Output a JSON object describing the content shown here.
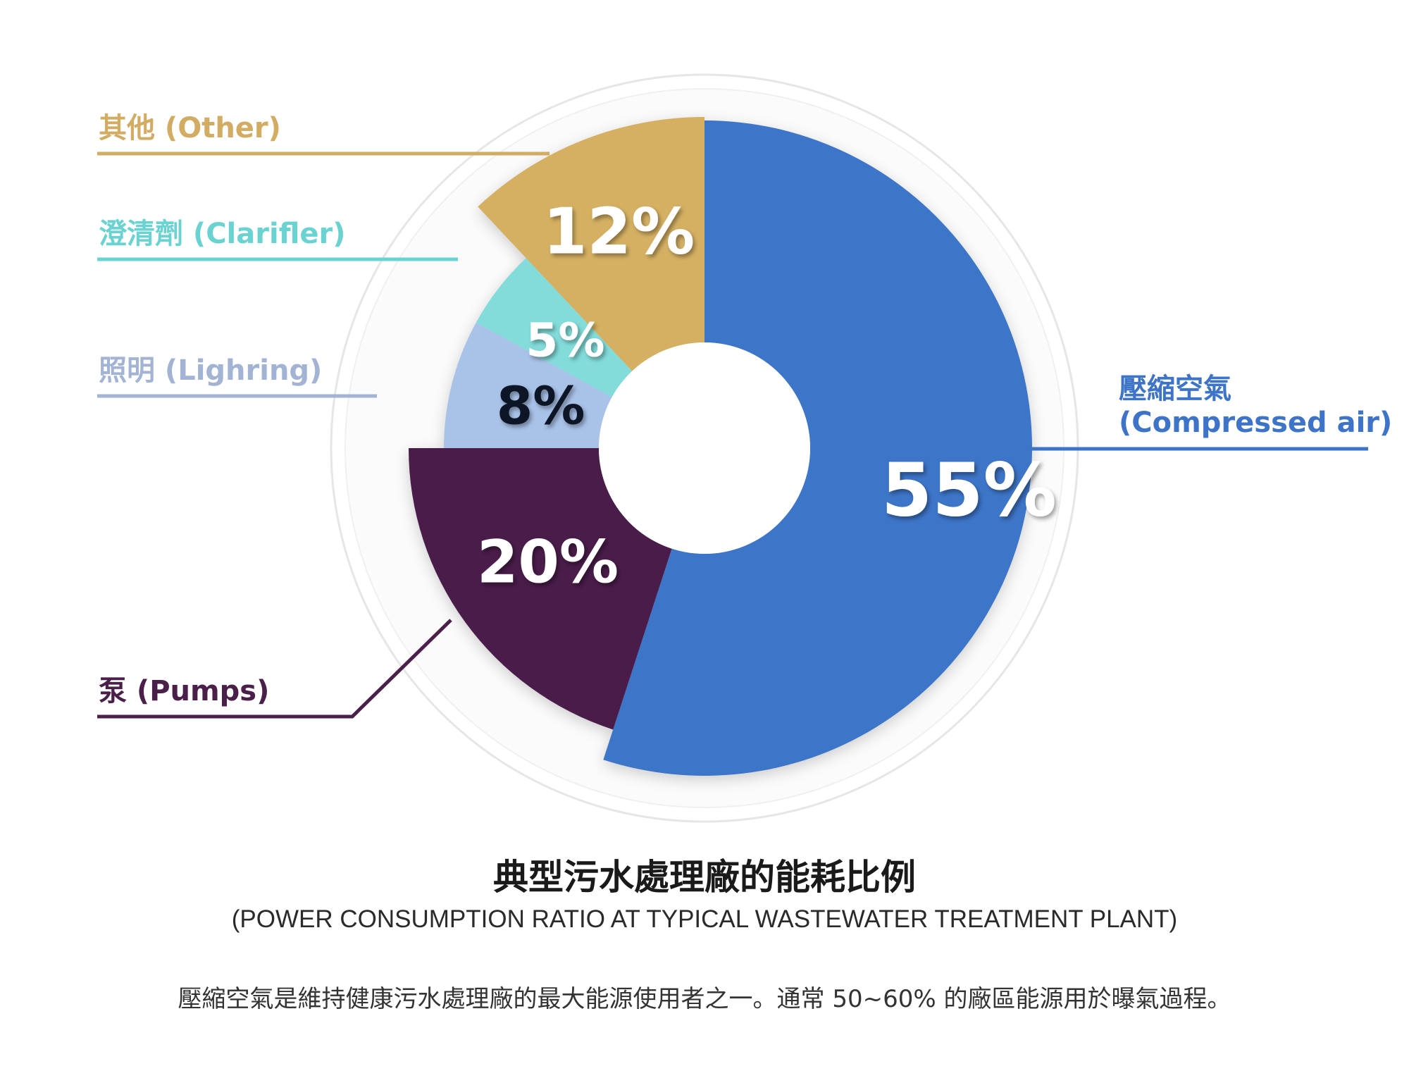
{
  "chart_data": {
    "type": "pie",
    "title": "典型污水處理廠的能耗比例",
    "subtitle": "(POWER CONSUMPTION RATIO AT TYPICAL WASTEWATER TREATMENT PLANT)",
    "slices": [
      {
        "label_zh": "壓縮空氣",
        "label_en": "(Compressed air)",
        "value": 55,
        "display": "55%",
        "color": "#3e74c8",
        "text_color": "#ffffff"
      },
      {
        "label_zh": "泵",
        "label_en": "(Pumps)",
        "value": 20,
        "display": "20%",
        "color": "#4a1f4a",
        "text_color": "#ffffff"
      },
      {
        "label_zh": "照明",
        "label_en": "(Lighring)",
        "value": 8,
        "display": "8%",
        "color": "#a9c2e8",
        "text_color": "#111827"
      },
      {
        "label_zh": "澄清劑",
        "label_en": "(Clarifler)",
        "value": 5,
        "display": "5%",
        "color": "#83dcda",
        "text_color": "#ffffff"
      },
      {
        "label_zh": "其他",
        "label_en": "(Other)",
        "value": 12,
        "display": "12%",
        "color": "#d5b063",
        "text_color": "#ffffff"
      }
    ],
    "label_colors": {
      "compressed_air": "#3e74c8",
      "pumps": "#4a1f4a",
      "lighting": "#a2b3d3",
      "clarifier": "#6ad3d1",
      "other": "#d1ac62"
    }
  },
  "labels": {
    "compressed_air_zh": "壓縮空氣",
    "compressed_air_en": "(Compressed air)",
    "pumps": "泵 (Pumps)",
    "lighting": "照明 (Lighring)",
    "clarifier": "澄清劑 (Clarifler)",
    "other": "其他 (Other)"
  },
  "note": "壓縮空氣是維持健康污水處理廠的最大能源使用者之一。通常 50~60% 的廠區能源用於曝氣過程。"
}
